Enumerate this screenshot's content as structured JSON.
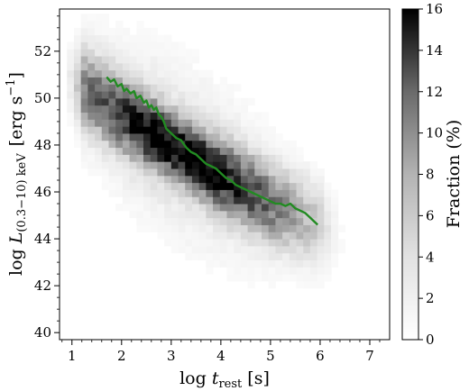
{
  "chart_data": {
    "type": "heatmap",
    "title": "",
    "xlabel": {
      "prefix": "log ",
      "symbol": "t",
      "subscript": "rest",
      "unit": " [s]"
    },
    "ylabel": {
      "prefix": "log ",
      "symbol": "L",
      "subscript": "(0.3−10) keV",
      "unit_open": "[erg s",
      "unit_exp": "−1",
      "unit_close": "]"
    },
    "xlim": [
      0.75,
      7.4
    ],
    "ylim": [
      39.7,
      53.8
    ],
    "xticks": [
      "1",
      "2",
      "3",
      "4",
      "5",
      "6",
      "7"
    ],
    "yticks": [
      "40",
      "42",
      "44",
      "46",
      "48",
      "50",
      "52"
    ],
    "colorbar": {
      "label": "Fraction (%)",
      "range": [
        0,
        16
      ],
      "ticks": [
        "0",
        "2",
        "4",
        "6",
        "8",
        "10",
        "12",
        "14",
        "16"
      ],
      "cmap": "Greys"
    },
    "density_model": {
      "ridge": [
        [
          1.3,
          50.3
        ],
        [
          2.0,
          49.3
        ],
        [
          3.0,
          48.0
        ],
        [
          4.0,
          46.7
        ],
        [
          5.0,
          45.5
        ],
        [
          5.8,
          44.8
        ]
      ],
      "peak_percent": 16
    },
    "series": [
      {
        "color": "#228b22",
        "x": [
          1.7,
          1.78,
          1.85,
          1.92,
          2.0,
          2.05,
          2.1,
          2.18,
          2.25,
          2.3,
          2.38,
          2.45,
          2.5,
          2.55,
          2.6,
          2.65,
          2.7,
          2.75,
          2.8,
          2.85,
          2.9,
          2.95,
          3.0,
          3.05,
          3.1,
          3.2,
          3.3,
          3.4,
          3.5,
          3.6,
          3.7,
          3.8,
          3.9,
          4.0,
          4.1,
          4.2,
          4.3,
          4.4,
          4.5,
          4.6,
          4.7,
          4.8,
          4.9,
          5.0,
          5.1,
          5.2,
          5.3,
          5.4,
          5.5,
          5.6,
          5.7,
          5.8,
          5.9,
          5.95
        ],
        "y": [
          50.9,
          50.7,
          50.8,
          50.5,
          50.6,
          50.3,
          50.4,
          50.2,
          50.3,
          50.0,
          50.1,
          49.8,
          49.9,
          49.6,
          49.7,
          49.5,
          49.6,
          49.3,
          49.2,
          49.0,
          48.7,
          48.6,
          48.5,
          48.4,
          48.3,
          48.2,
          47.9,
          47.7,
          47.6,
          47.4,
          47.2,
          47.1,
          47.0,
          46.8,
          46.6,
          46.5,
          46.3,
          46.2,
          46.1,
          46.0,
          45.9,
          45.8,
          45.7,
          45.6,
          45.5,
          45.5,
          45.4,
          45.5,
          45.3,
          45.2,
          45.1,
          44.9,
          44.7,
          44.6
        ]
      }
    ]
  }
}
